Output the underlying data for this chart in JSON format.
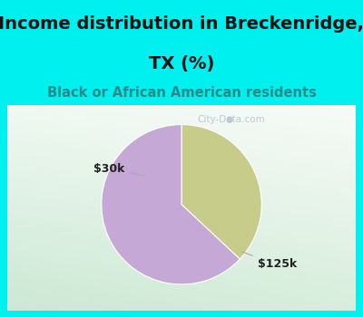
{
  "title_line1": "Income distribution in Breckenridge,",
  "title_line2": "TX (%)",
  "subtitle": "Black or African American residents",
  "slices": [
    {
      "label": "$30k",
      "value": 37,
      "color": "#c8cc8a"
    },
    {
      "label": "$125k",
      "value": 63,
      "color": "#c5a8d5"
    }
  ],
  "title_fontsize": 14,
  "subtitle_fontsize": 10.5,
  "label_fontsize": 9,
  "bg_color": "#00efef",
  "chart_bg_color_topleft": "#e8f5ee",
  "chart_bg_color_bottomright": "#d5eed8",
  "watermark": "City-Data.com",
  "start_angle": 90,
  "title_color": "#111111",
  "subtitle_color": "#2a8a8a",
  "label_color": "#222222",
  "line_color": "#aaaaaa"
}
